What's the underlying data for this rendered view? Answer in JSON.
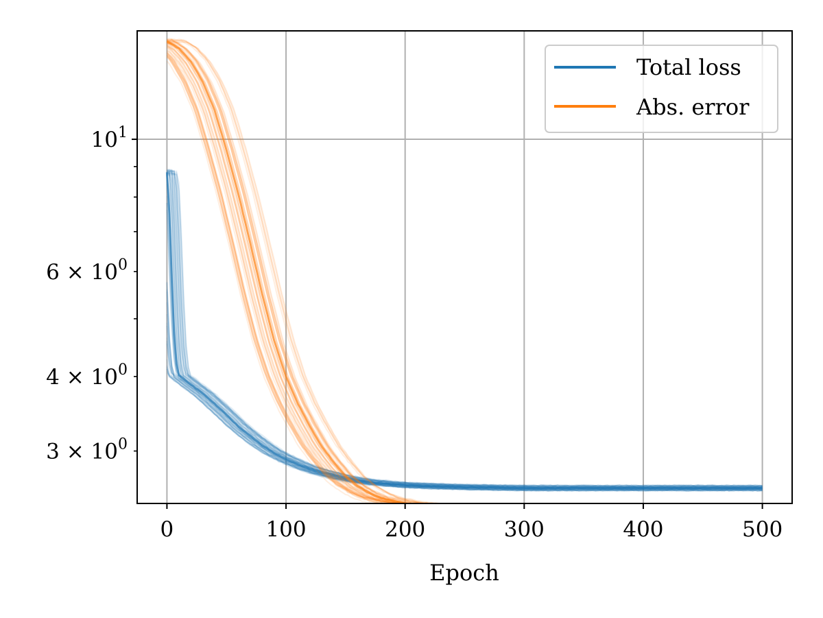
{
  "chart_data": {
    "type": "line",
    "title": "",
    "xlabel": "Epoch",
    "ylabel": "",
    "xlim": [
      -25,
      525
    ],
    "ylim": [
      2.45,
      15.2
    ],
    "y_scale": "log",
    "grid": true,
    "legend_position": "top-right",
    "x_ticks": [
      {
        "value": 0,
        "label": "0"
      },
      {
        "value": 100,
        "label": "100"
      },
      {
        "value": 200,
        "label": "200"
      },
      {
        "value": 300,
        "label": "300"
      },
      {
        "value": 400,
        "label": "400"
      },
      {
        "value": 500,
        "label": "500"
      }
    ],
    "y_major_ticks": [
      {
        "value": 10,
        "base": "10",
        "exp": "1"
      }
    ],
    "y_minor_ticks": [
      {
        "value": 3,
        "mantissa": "3",
        "base": "10",
        "exp": "0",
        "labeled": true
      },
      {
        "value": 4,
        "mantissa": "4",
        "base": "10",
        "exp": "0",
        "labeled": true
      },
      {
        "value": 5,
        "labeled": false
      },
      {
        "value": 6,
        "mantissa": "6",
        "base": "10",
        "exp": "0",
        "labeled": true
      },
      {
        "value": 7,
        "labeled": false
      },
      {
        "value": 8,
        "labeled": false
      },
      {
        "value": 9,
        "labeled": false
      }
    ],
    "series": [
      {
        "name": "Total loss",
        "color": "#1f77b4",
        "runs": 50,
        "x": [
          0,
          2,
          4,
          6,
          8,
          10,
          20,
          30,
          40,
          50,
          60,
          70,
          80,
          90,
          100,
          110,
          120,
          130,
          140,
          150,
          160,
          170,
          180,
          200,
          220,
          250,
          300,
          350,
          400,
          450,
          500
        ],
        "y": [
          8.8,
          7.5,
          5.8,
          4.7,
          4.2,
          4.02,
          3.88,
          3.75,
          3.6,
          3.45,
          3.3,
          3.18,
          3.07,
          2.98,
          2.91,
          2.85,
          2.8,
          2.76,
          2.73,
          2.7,
          2.68,
          2.66,
          2.65,
          2.63,
          2.62,
          2.61,
          2.6,
          2.6,
          2.6,
          2.6,
          2.6
        ]
      },
      {
        "name": "Abs. error",
        "color": "#ff7f0e",
        "runs": 50,
        "x": [
          0,
          10,
          20,
          30,
          40,
          50,
          60,
          70,
          80,
          90,
          100,
          110,
          120,
          130,
          140,
          150,
          160,
          170,
          180,
          200,
          220,
          250,
          300,
          350,
          400,
          450,
          500
        ],
        "y": [
          14.6,
          14.2,
          13.5,
          12.5,
          11.2,
          9.6,
          8.1,
          6.7,
          5.5,
          4.6,
          4.0,
          3.6,
          3.3,
          3.05,
          2.87,
          2.72,
          2.62,
          2.55,
          2.5,
          2.45,
          2.43,
          2.41,
          2.4,
          2.4,
          2.39,
          2.39,
          2.39
        ]
      }
    ]
  }
}
